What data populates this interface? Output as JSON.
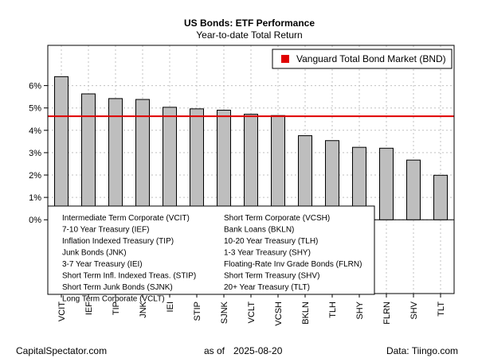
{
  "chart_data": {
    "type": "bar",
    "title": "US Bonds: ETF Performance",
    "subtitle": "Year-to-date Total Return",
    "categories": [
      "VCIT",
      "IEF",
      "TIP",
      "JNK",
      "IEI",
      "STIP",
      "SJNK",
      "VCLT",
      "VCSH",
      "BKLN",
      "TLH",
      "SHY",
      "FLRN",
      "SHV",
      "TLT"
    ],
    "values": [
      6.4,
      5.63,
      5.42,
      5.38,
      5.03,
      4.96,
      4.9,
      4.72,
      4.66,
      3.76,
      3.54,
      3.24,
      3.2,
      2.67,
      1.99
    ],
    "ylim": [
      -3.3,
      7.8
    ],
    "yticks": [
      0,
      1,
      2,
      3,
      4,
      5,
      6
    ],
    "ytick_labels": [
      "0%",
      "1%",
      "2%",
      "3%",
      "4%",
      "5%",
      "6%"
    ],
    "grid": true,
    "reference_line": {
      "label": "Vanguard Total Bond Market (BND)",
      "value": 4.63,
      "color": "#e00000"
    },
    "legend_position": "top-right",
    "bar_color": "#bebebe",
    "key_entries": [
      "Intermediate Term Corporate (VCIT)",
      "7-10 Year Treasury (IEF)",
      "Inflation Indexed Treasury (TIP)",
      "Junk Bonds (JNK)",
      "3-7 Year Treasury (IEI)",
      "Short Term Infl. Indexed Treas. (STIP)",
      "Short Term Junk Bonds (SJNK)",
      "Long Term Corporate (VCLT)",
      "Short Term Corporate (VCSH)",
      "Bank Loans (BKLN)",
      "10-20 Year Treasury (TLH)",
      "1-3 Year Treasury (SHY)",
      "Floating-Rate Inv Grade Bonds (FLRN)",
      "Short Term Treasury (SHV)",
      "20+ Year Treasury (TLT)"
    ]
  },
  "footer": {
    "source_left": "CapitalSpectator.com",
    "as_of_label": "as of",
    "date": "2025-08-20",
    "data_credit": "Data: Tiingo.com"
  }
}
